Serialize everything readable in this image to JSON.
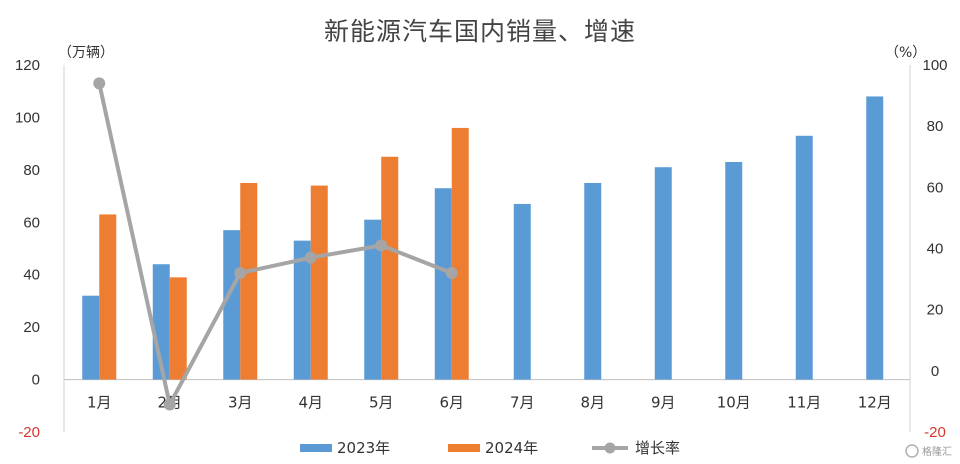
{
  "chart_data": {
    "type": "bar",
    "title": "新能源汽车国内销量、增速",
    "y_left_unit": "（万辆）",
    "y_right_unit": "（%）",
    "ylim_left": [
      -20,
      120
    ],
    "ylim_right": [
      -20,
      100
    ],
    "left_ticks": [
      "-20",
      "0",
      "20",
      "40",
      "60",
      "80",
      "100",
      "120"
    ],
    "right_ticks": [
      "-20",
      "0",
      "20",
      "40",
      "60",
      "80",
      "100"
    ],
    "categories": [
      "1月",
      "2月",
      "3月",
      "4月",
      "5月",
      "6月",
      "7月",
      "8月",
      "9月",
      "10月",
      "11月",
      "12月"
    ],
    "series": [
      {
        "name": "2023年",
        "kind": "bar",
        "axis": "left",
        "color": "#5b9bd5",
        "values": [
          32,
          44,
          57,
          53,
          61,
          73,
          67,
          75,
          81,
          83,
          93,
          108
        ]
      },
      {
        "name": "2024年",
        "kind": "bar",
        "axis": "left",
        "color": "#ed7d31",
        "values": [
          63,
          39,
          75,
          74,
          85,
          96,
          null,
          null,
          null,
          null,
          null,
          null
        ]
      },
      {
        "name": "增长率",
        "kind": "line",
        "axis": "right",
        "color": "#a5a5a5",
        "values": [
          94,
          -11,
          32,
          37,
          41,
          32,
          null,
          null,
          null,
          null,
          null,
          null
        ]
      }
    ],
    "negative_tick_color": "#d9362b",
    "grid": false,
    "legend_position": "bottom"
  },
  "watermark": "格隆汇"
}
